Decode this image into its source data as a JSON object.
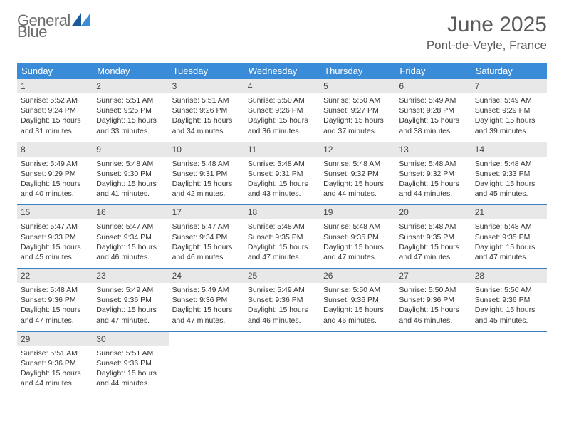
{
  "logo": {
    "general": "General",
    "blue": "Blue"
  },
  "header": {
    "month_title": "June 2025",
    "location": "Pont-de-Veyle, France"
  },
  "colors": {
    "header_bg": "#3a8bd8",
    "accent": "#3a7fc4",
    "daynum_bg": "#e8e8e8",
    "text": "#333333",
    "title_text": "#5a5a5a"
  },
  "weekdays": [
    "Sunday",
    "Monday",
    "Tuesday",
    "Wednesday",
    "Thursday",
    "Friday",
    "Saturday"
  ],
  "days": [
    {
      "n": "1",
      "sr": "Sunrise: 5:52 AM",
      "ss": "Sunset: 9:24 PM",
      "dl": "Daylight: 15 hours and 31 minutes."
    },
    {
      "n": "2",
      "sr": "Sunrise: 5:51 AM",
      "ss": "Sunset: 9:25 PM",
      "dl": "Daylight: 15 hours and 33 minutes."
    },
    {
      "n": "3",
      "sr": "Sunrise: 5:51 AM",
      "ss": "Sunset: 9:26 PM",
      "dl": "Daylight: 15 hours and 34 minutes."
    },
    {
      "n": "4",
      "sr": "Sunrise: 5:50 AM",
      "ss": "Sunset: 9:26 PM",
      "dl": "Daylight: 15 hours and 36 minutes."
    },
    {
      "n": "5",
      "sr": "Sunrise: 5:50 AM",
      "ss": "Sunset: 9:27 PM",
      "dl": "Daylight: 15 hours and 37 minutes."
    },
    {
      "n": "6",
      "sr": "Sunrise: 5:49 AM",
      "ss": "Sunset: 9:28 PM",
      "dl": "Daylight: 15 hours and 38 minutes."
    },
    {
      "n": "7",
      "sr": "Sunrise: 5:49 AM",
      "ss": "Sunset: 9:29 PM",
      "dl": "Daylight: 15 hours and 39 minutes."
    },
    {
      "n": "8",
      "sr": "Sunrise: 5:49 AM",
      "ss": "Sunset: 9:29 PM",
      "dl": "Daylight: 15 hours and 40 minutes."
    },
    {
      "n": "9",
      "sr": "Sunrise: 5:48 AM",
      "ss": "Sunset: 9:30 PM",
      "dl": "Daylight: 15 hours and 41 minutes."
    },
    {
      "n": "10",
      "sr": "Sunrise: 5:48 AM",
      "ss": "Sunset: 9:31 PM",
      "dl": "Daylight: 15 hours and 42 minutes."
    },
    {
      "n": "11",
      "sr": "Sunrise: 5:48 AM",
      "ss": "Sunset: 9:31 PM",
      "dl": "Daylight: 15 hours and 43 minutes."
    },
    {
      "n": "12",
      "sr": "Sunrise: 5:48 AM",
      "ss": "Sunset: 9:32 PM",
      "dl": "Daylight: 15 hours and 44 minutes."
    },
    {
      "n": "13",
      "sr": "Sunrise: 5:48 AM",
      "ss": "Sunset: 9:32 PM",
      "dl": "Daylight: 15 hours and 44 minutes."
    },
    {
      "n": "14",
      "sr": "Sunrise: 5:48 AM",
      "ss": "Sunset: 9:33 PM",
      "dl": "Daylight: 15 hours and 45 minutes."
    },
    {
      "n": "15",
      "sr": "Sunrise: 5:47 AM",
      "ss": "Sunset: 9:33 PM",
      "dl": "Daylight: 15 hours and 45 minutes."
    },
    {
      "n": "16",
      "sr": "Sunrise: 5:47 AM",
      "ss": "Sunset: 9:34 PM",
      "dl": "Daylight: 15 hours and 46 minutes."
    },
    {
      "n": "17",
      "sr": "Sunrise: 5:47 AM",
      "ss": "Sunset: 9:34 PM",
      "dl": "Daylight: 15 hours and 46 minutes."
    },
    {
      "n": "18",
      "sr": "Sunrise: 5:48 AM",
      "ss": "Sunset: 9:35 PM",
      "dl": "Daylight: 15 hours and 47 minutes."
    },
    {
      "n": "19",
      "sr": "Sunrise: 5:48 AM",
      "ss": "Sunset: 9:35 PM",
      "dl": "Daylight: 15 hours and 47 minutes."
    },
    {
      "n": "20",
      "sr": "Sunrise: 5:48 AM",
      "ss": "Sunset: 9:35 PM",
      "dl": "Daylight: 15 hours and 47 minutes."
    },
    {
      "n": "21",
      "sr": "Sunrise: 5:48 AM",
      "ss": "Sunset: 9:35 PM",
      "dl": "Daylight: 15 hours and 47 minutes."
    },
    {
      "n": "22",
      "sr": "Sunrise: 5:48 AM",
      "ss": "Sunset: 9:36 PM",
      "dl": "Daylight: 15 hours and 47 minutes."
    },
    {
      "n": "23",
      "sr": "Sunrise: 5:49 AM",
      "ss": "Sunset: 9:36 PM",
      "dl": "Daylight: 15 hours and 47 minutes."
    },
    {
      "n": "24",
      "sr": "Sunrise: 5:49 AM",
      "ss": "Sunset: 9:36 PM",
      "dl": "Daylight: 15 hours and 47 minutes."
    },
    {
      "n": "25",
      "sr": "Sunrise: 5:49 AM",
      "ss": "Sunset: 9:36 PM",
      "dl": "Daylight: 15 hours and 46 minutes."
    },
    {
      "n": "26",
      "sr": "Sunrise: 5:50 AM",
      "ss": "Sunset: 9:36 PM",
      "dl": "Daylight: 15 hours and 46 minutes."
    },
    {
      "n": "27",
      "sr": "Sunrise: 5:50 AM",
      "ss": "Sunset: 9:36 PM",
      "dl": "Daylight: 15 hours and 46 minutes."
    },
    {
      "n": "28",
      "sr": "Sunrise: 5:50 AM",
      "ss": "Sunset: 9:36 PM",
      "dl": "Daylight: 15 hours and 45 minutes."
    },
    {
      "n": "29",
      "sr": "Sunrise: 5:51 AM",
      "ss": "Sunset: 9:36 PM",
      "dl": "Daylight: 15 hours and 44 minutes."
    },
    {
      "n": "30",
      "sr": "Sunrise: 5:51 AM",
      "ss": "Sunset: 9:36 PM",
      "dl": "Daylight: 15 hours and 44 minutes."
    }
  ]
}
